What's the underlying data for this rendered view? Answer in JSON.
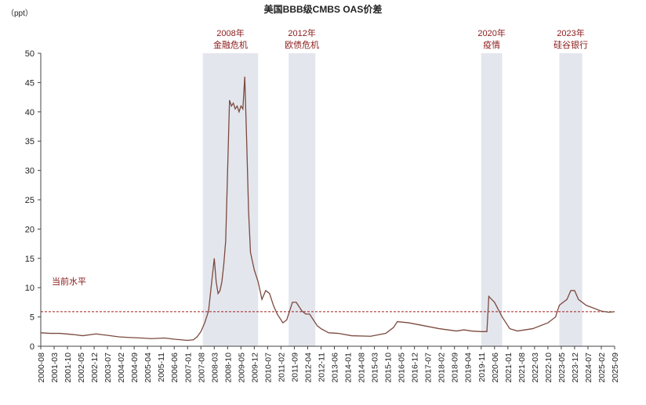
{
  "chart_data": {
    "type": "line",
    "title": "美国BBB级CMBS OAS价差",
    "y_label": "（ppt）",
    "x": [
      "2000-08",
      "2001-01",
      "2001-06",
      "2002-01",
      "2002-06",
      "2003-01",
      "2003-06",
      "2004-01",
      "2004-06",
      "2005-01",
      "2005-06",
      "2006-01",
      "2006-06",
      "2007-01",
      "2007-04",
      "2007-06",
      "2007-08",
      "2007-10",
      "2007-12",
      "2008-01",
      "2008-02",
      "2008-03",
      "2008-04",
      "2008-05",
      "2008-06",
      "2008-07",
      "2008-08",
      "2008-09",
      "2008-10",
      "2008-11",
      "2008-12",
      "2009-01",
      "2009-02",
      "2009-03",
      "2009-04",
      "2009-05",
      "2009-06",
      "2009-07",
      "2009-08",
      "2009-09",
      "2009-10",
      "2009-12",
      "2010-02",
      "2010-04",
      "2010-06",
      "2010-08",
      "2010-10",
      "2010-12",
      "2011-03",
      "2011-05",
      "2011-08",
      "2011-10",
      "2012-01",
      "2012-03",
      "2012-05",
      "2012-07",
      "2012-09",
      "2012-11",
      "2013-03",
      "2013-08",
      "2014-03",
      "2015-01",
      "2015-09",
      "2016-01",
      "2016-03",
      "2016-09",
      "2017-05",
      "2018-01",
      "2018-10",
      "2019-02",
      "2019-06",
      "2019-11",
      "2020-02",
      "2020-03",
      "2020-06",
      "2020-10",
      "2021-02",
      "2021-06",
      "2022-02",
      "2022-10",
      "2023-02",
      "2023-04",
      "2023-08",
      "2023-10",
      "2023-12",
      "2024-02",
      "2024-06",
      "2024-10",
      "2025-02",
      "2025-06",
      "2025-09"
    ],
    "values": [
      2.3,
      2.2,
      2.2,
      2.0,
      1.8,
      2.1,
      1.9,
      1.6,
      1.5,
      1.4,
      1.3,
      1.4,
      1.2,
      1.0,
      1.1,
      1.6,
      2.5,
      4.0,
      6.0,
      9,
      12,
      15,
      11,
      9,
      9.5,
      11,
      14,
      18,
      30,
      42,
      41,
      41.5,
      40.5,
      41,
      40,
      41,
      40.5,
      46,
      35,
      23,
      16,
      13,
      11,
      8,
      9.5,
      9,
      7,
      5.5,
      4,
      4.5,
      7.5,
      7.5,
      6,
      5.5,
      5.5,
      4.5,
      3.5,
      3,
      2.3,
      2.2,
      1.8,
      1.7,
      2.2,
      3.2,
      4.2,
      4.0,
      3.5,
      3.0,
      2.6,
      2.8,
      2.6,
      2.5,
      2.5,
      8.5,
      7.5,
      5,
      3,
      2.6,
      3,
      4,
      5,
      7,
      8,
      9.5,
      9.5,
      8,
      7,
      6.5,
      6,
      5.8,
      5.9
    ],
    "color": "#7b4a3e",
    "xlim": [
      "2000-08",
      "2025-09"
    ],
    "xticks": [
      "2000-08",
      "2001-03",
      "2001-10",
      "2002-05",
      "2002-12",
      "2003-07",
      "2004-02",
      "2004-09",
      "2005-04",
      "2005-11",
      "2006-06",
      "2007-01",
      "2007-08",
      "2008-03",
      "2008-10",
      "2009-05",
      "2009-12",
      "2010-07",
      "2011-02",
      "2011-09",
      "2012-04",
      "2012-11",
      "2013-06",
      "2014-01",
      "2014-08",
      "2015-03",
      "2015-10",
      "2016-05",
      "2016-12",
      "2017-07",
      "2018-02",
      "2018-09",
      "2019-04",
      "2019-11",
      "2020-06",
      "2021-01",
      "2021-08",
      "2022-03",
      "2022-10",
      "2023-05",
      "2023-12",
      "2024-07",
      "2025-02",
      "2025-09"
    ],
    "ylim": [
      0,
      50
    ],
    "yticks": [
      0,
      5,
      10,
      15,
      20,
      25,
      30,
      35,
      40,
      45,
      50
    ],
    "shaded_regions": [
      {
        "start": "2007-09",
        "end": "2010-02",
        "label": [
          "2008年",
          "金融危机"
        ]
      },
      {
        "start": "2011-06",
        "end": "2012-08",
        "label": [
          "2012年",
          "欧债危机"
        ]
      },
      {
        "start": "2019-11",
        "end": "2020-10",
        "label": [
          "2020年",
          "疫情"
        ]
      },
      {
        "start": "2023-04",
        "end": "2024-04",
        "label": [
          "2023年",
          "硅谷银行"
        ]
      }
    ],
    "shade_color": "#e4e6ed",
    "reference_line": {
      "value": 5.9,
      "label": "当前水平",
      "color": "#a02020"
    }
  }
}
